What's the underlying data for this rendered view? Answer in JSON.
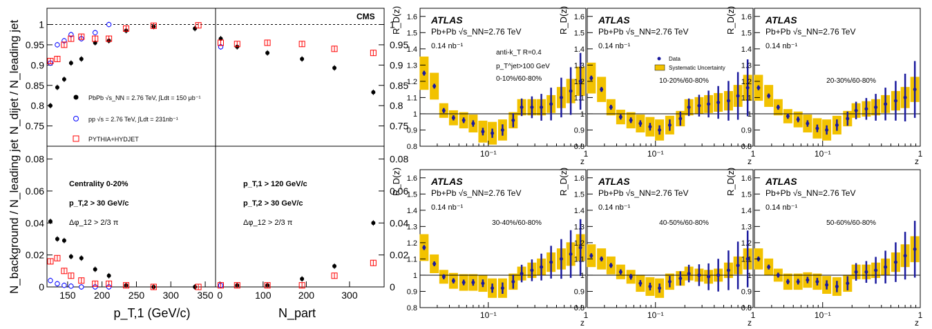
{
  "colors": {
    "pbpb": "#000000",
    "pp": "#0000ff",
    "pythia": "#ff0000",
    "atlas_band": "#f2c200",
    "atlas_point": "#1a1a9e"
  },
  "cms": {
    "label": "CMS",
    "ylabel_top": "N_dijet / N_leading jet",
    "ylabel_bottom": "N_background / N_leading jet",
    "xlabel_left": "p_T,1 (GeV/c)",
    "xlabel_right": "N_part",
    "ylim_top": [
      0.7,
      1.04
    ],
    "ylim_bottom": [
      0,
      0.088
    ],
    "xlim_left": [
      120,
      365
    ],
    "xlim_right": [
      -10,
      380
    ],
    "yticks_top": [
      "0.75",
      "0.8",
      "0.85",
      "0.9",
      "0.95",
      "1"
    ],
    "yticks_bottom": [
      "0",
      "0.02",
      "0.04",
      "0.06",
      "0.08"
    ],
    "xticks_left": [
      "150",
      "200",
      "250",
      "300",
      "350"
    ],
    "xticks_right": [
      "0",
      "100",
      "200",
      "300"
    ],
    "legend": [
      "PbPb √s_NN = 2.76 TeV, ∫Ldt = 150 μb⁻¹",
      "pp √s = 2.76 TeV, ∫Ldt = 231nb⁻¹",
      "PYTHIA+HYDJET"
    ],
    "cuts_left": [
      "Centrality 0-20%",
      "p_T,2 > 30 GeV/c",
      "Δφ_12 > 2/3 π"
    ],
    "cuts_right": [
      "p_T,1 > 120 GeV/c",
      "p_T,2 > 30 GeV/c",
      "Δφ_12 > 2/3 π"
    ]
  },
  "atlas": {
    "label": "ATLAS",
    "system": "Pb+Pb √s_NN=2.76 TeV",
    "lumi": "0.14 nb⁻¹",
    "ylabel": "R_D(z)",
    "xlabel": "z",
    "ylim": [
      0.8,
      1.65
    ],
    "yticks": [
      "0.8",
      "0.9",
      "1",
      "1.1",
      "1.2",
      "1.3",
      "1.4",
      "1.5",
      "1.6"
    ],
    "xticks": [
      "10⁻¹",
      "1"
    ],
    "jet_cuts": [
      "anti-k_T R=0.4",
      "p_T^jet>100 GeV"
    ],
    "legend": [
      "Data",
      "Systematic Uncertainty"
    ],
    "panels": [
      "0-10%/60-80%",
      "10-20%/60-80%",
      "20-30%/60-80%",
      "30-40%/60-80%",
      "40-50%/60-80%",
      "50-60%/60-80%"
    ]
  },
  "chart_data": [
    {
      "type": "scatter",
      "title": "",
      "xlabel": "p_T,1 (GeV/c)",
      "ylabel": "N_dijet/N_leading jet",
      "xlim": [
        120,
        365
      ],
      "ylim": [
        0.7,
        1.04
      ],
      "series": [
        {
          "name": "PbPb √s_NN = 2.76 TeV, ∫Ldt = 150 μb⁻¹",
          "x": [
            125,
            135,
            145,
            155,
            170,
            190,
            210,
            235,
            275,
            335
          ],
          "y": [
            0.8,
            0.845,
            0.865,
            0.905,
            0.915,
            0.955,
            0.96,
            0.985,
            0.995,
            0.99
          ]
        },
        {
          "name": "pp √s = 2.76 TeV, ∫Ldt = 231nb⁻¹",
          "x": [
            125,
            135,
            145,
            155,
            170,
            190,
            210
          ],
          "y": [
            0.905,
            0.95,
            0.96,
            0.975,
            0.965,
            0.98,
            1.0
          ]
        },
        {
          "name": "PYTHIA+HYDJET",
          "x": [
            125,
            135,
            145,
            155,
            170,
            190,
            210,
            235,
            275,
            340
          ],
          "y": [
            0.91,
            0.915,
            0.95,
            0.965,
            0.97,
            0.965,
            0.965,
            0.99,
            0.997,
            0.998
          ]
        }
      ]
    },
    {
      "type": "scatter",
      "xlabel": "N_part",
      "xlim": [
        -10,
        380
      ],
      "ylim": [
        0.7,
        1.04
      ],
      "series": [
        {
          "name": "PbPb",
          "x": [
            2,
            40,
            110,
            190,
            265,
            355
          ],
          "y": [
            0.965,
            0.945,
            0.93,
            0.915,
            0.893,
            0.833
          ]
        },
        {
          "name": "pp",
          "x": [
            2
          ],
          "y": [
            0.945
          ]
        },
        {
          "name": "PYTHIA+HYDJET",
          "x": [
            2,
            40,
            110,
            190,
            265,
            355
          ],
          "y": [
            0.955,
            0.952,
            0.955,
            0.952,
            0.94,
            0.93
          ]
        }
      ]
    },
    {
      "type": "scatter",
      "xlabel": "p_T,1 (GeV/c)",
      "ylabel": "N_background/N_leading jet",
      "xlim": [
        120,
        365
      ],
      "ylim": [
        0,
        0.088
      ],
      "series": [
        {
          "name": "PbPb",
          "x": [
            125,
            135,
            145,
            155,
            170,
            190,
            210,
            235,
            275,
            335
          ],
          "y": [
            0.041,
            0.03,
            0.029,
            0.019,
            0.018,
            0.011,
            0.007,
            0.001,
            0.0,
            0.0
          ]
        },
        {
          "name": "pp",
          "x": [
            125,
            135,
            145,
            155,
            170,
            190,
            210
          ],
          "y": [
            0.004,
            0.002,
            0.001,
            0.0005,
            0.0,
            0.0,
            0.0
          ]
        },
        {
          "name": "PYTHIA+HYDJET",
          "x": [
            125,
            135,
            145,
            155,
            170,
            190,
            210,
            235,
            275,
            340
          ],
          "y": [
            0.016,
            0.018,
            0.01,
            0.007,
            0.004,
            0.002,
            0.002,
            0.001,
            0.0,
            0.0
          ]
        }
      ]
    },
    {
      "type": "scatter",
      "xlabel": "N_part",
      "xlim": [
        -10,
        380
      ],
      "ylim": [
        0,
        0.088
      ],
      "series": [
        {
          "name": "PbPb",
          "x": [
            2,
            40,
            110,
            190,
            265,
            355
          ],
          "y": [
            0.001,
            0.001,
            0.001,
            0.005,
            0.013,
            0.04
          ]
        },
        {
          "name": "pp",
          "x": [
            2
          ],
          "y": [
            0.001
          ]
        },
        {
          "name": "PYTHIA+HYDJET",
          "x": [
            2,
            40,
            110,
            190,
            265,
            355
          ],
          "y": [
            0.001,
            0.001,
            0.001,
            0.001,
            0.007,
            0.015
          ]
        }
      ]
    },
    {
      "type": "scatter",
      "title": "0-10%/60-80%",
      "xlabel": "z",
      "ylabel": "R_D(z)",
      "xscale": "log",
      "xlim": [
        0.02,
        1
      ],
      "ylim": [
        0.8,
        1.65
      ],
      "x": [
        0.022,
        0.028,
        0.035,
        0.044,
        0.056,
        0.07,
        0.088,
        0.11,
        0.14,
        0.18,
        0.22,
        0.28,
        0.35,
        0.44,
        0.56,
        0.7,
        0.88
      ],
      "series": [
        {
          "name": "Data",
          "y": [
            1.25,
            1.17,
            1.02,
            0.975,
            0.96,
            0.94,
            0.89,
            0.88,
            0.9,
            0.96,
            1.04,
            1.04,
            1.04,
            1.06,
            1.1,
            1.14,
            1.2
          ]
        }
      ]
    },
    {
      "type": "scatter",
      "title": "10-20%/60-80%",
      "xlabel": "z",
      "ylabel": "R_D(z)",
      "xscale": "log",
      "xlim": [
        0.02,
        1
      ],
      "ylim": [
        0.8,
        1.65
      ],
      "x": [
        0.022,
        0.028,
        0.035,
        0.044,
        0.056,
        0.07,
        0.088,
        0.11,
        0.14,
        0.18,
        0.22,
        0.28,
        0.35,
        0.44,
        0.56,
        0.7,
        0.88
      ],
      "series": [
        {
          "name": "Data",
          "y": [
            1.22,
            1.15,
            1.04,
            0.98,
            0.96,
            0.94,
            0.92,
            0.9,
            0.93,
            0.97,
            1.04,
            1.05,
            1.06,
            1.07,
            1.08,
            1.11,
            1.16
          ]
        }
      ]
    },
    {
      "type": "scatter",
      "title": "20-30%/60-80%",
      "xlabel": "z",
      "ylabel": "R_D(z)",
      "xscale": "log",
      "xlim": [
        0.02,
        1
      ],
      "ylim": [
        0.8,
        1.65
      ],
      "x": [
        0.022,
        0.028,
        0.035,
        0.044,
        0.056,
        0.07,
        0.088,
        0.11,
        0.14,
        0.18,
        0.22,
        0.28,
        0.35,
        0.44,
        0.56,
        0.7,
        0.88
      ],
      "series": [
        {
          "name": "Data",
          "y": [
            1.16,
            1.11,
            1.04,
            0.985,
            0.965,
            0.94,
            0.91,
            0.9,
            0.93,
            0.97,
            1.02,
            1.03,
            1.04,
            1.06,
            1.08,
            1.1,
            1.15
          ]
        }
      ]
    },
    {
      "type": "scatter",
      "title": "30-40%/60-80%",
      "xlabel": "z",
      "ylabel": "R_D(z)",
      "xscale": "log",
      "xlim": [
        0.02,
        1
      ],
      "ylim": [
        0.8,
        1.65
      ],
      "x": [
        0.022,
        0.028,
        0.035,
        0.044,
        0.056,
        0.07,
        0.088,
        0.11,
        0.14,
        0.18,
        0.22,
        0.28,
        0.35,
        0.44,
        0.56,
        0.7,
        0.88
      ],
      "series": [
        {
          "name": "Data",
          "y": [
            1.17,
            1.07,
            0.99,
            0.965,
            0.955,
            0.955,
            0.95,
            0.92,
            0.92,
            0.96,
            1.01,
            1.03,
            1.05,
            1.08,
            1.1,
            1.13,
            1.17
          ]
        }
      ]
    },
    {
      "type": "scatter",
      "title": "40-50%/60-80%",
      "xlabel": "z",
      "ylabel": "R_D(z)",
      "xscale": "log",
      "xlim": [
        0.02,
        1
      ],
      "ylim": [
        0.8,
        1.65
      ],
      "x": [
        0.022,
        0.028,
        0.035,
        0.044,
        0.056,
        0.07,
        0.088,
        0.11,
        0.14,
        0.18,
        0.22,
        0.28,
        0.35,
        0.44,
        0.56,
        0.7,
        0.88
      ],
      "series": [
        {
          "name": "Data",
          "y": [
            1.12,
            1.1,
            1.06,
            1.02,
            0.99,
            0.95,
            0.93,
            0.92,
            0.96,
            0.98,
            1.01,
            1.0,
            0.99,
            1.0,
            1.03,
            1.06,
            1.1
          ]
        }
      ]
    },
    {
      "type": "scatter",
      "title": "50-60%/60-80%",
      "xlabel": "z",
      "ylabel": "R_D(z)",
      "xscale": "log",
      "xlim": [
        0.02,
        1
      ],
      "ylim": [
        0.8,
        1.65
      ],
      "x": [
        0.022,
        0.028,
        0.035,
        0.044,
        0.056,
        0.07,
        0.088,
        0.11,
        0.14,
        0.18,
        0.22,
        0.28,
        0.35,
        0.44,
        0.56,
        0.7,
        0.88
      ],
      "series": [
        {
          "name": "Data",
          "y": [
            1.1,
            1.05,
            1.0,
            0.96,
            0.96,
            0.97,
            0.96,
            0.94,
            0.93,
            0.95,
            1.02,
            1.02,
            1.03,
            1.05,
            1.08,
            1.12,
            1.16
          ]
        }
      ]
    }
  ]
}
